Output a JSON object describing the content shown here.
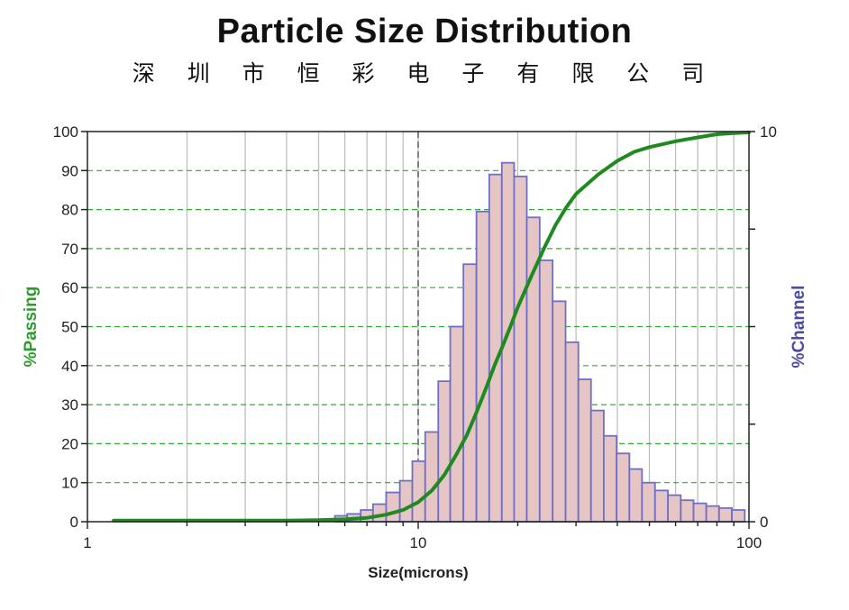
{
  "chart_data": {
    "type": "bar",
    "title": "Particle Size Distribution",
    "subtitle": "深 圳 市 恒 彩 电 子 有 限 公 司",
    "xlabel": "Size(microns)",
    "ylabel_left": "%Passing",
    "ylabel_right": "%Channel",
    "x_scale": "log",
    "xlim": [
      1,
      100
    ],
    "x_ticks": [
      1,
      10,
      100
    ],
    "ylim_left": [
      0,
      100
    ],
    "y_ticks_left": [
      0,
      10,
      20,
      30,
      40,
      50,
      60,
      70,
      80,
      90,
      100
    ],
    "ylim_right": [
      0,
      10
    ],
    "y_ticks_right_labeled": [
      0,
      10
    ],
    "reference_line_x": 10,
    "grid": true,
    "colors": {
      "passing": "#1f8a1f",
      "channel_axis": "#4b4ba0",
      "bar_fill": "#e6c5c5",
      "bar_edge": "#6f6fc8",
      "grid_h": "#33aa33",
      "grid_v": "#bfbfbf"
    },
    "histogram": {
      "name": "%Channel",
      "bins": [
        {
          "from": 5.6,
          "to": 6.1,
          "value": 0.15
        },
        {
          "from": 6.1,
          "to": 6.7,
          "value": 0.2
        },
        {
          "from": 6.7,
          "to": 7.3,
          "value": 0.3
        },
        {
          "from": 7.3,
          "to": 8.0,
          "value": 0.45
        },
        {
          "from": 8.0,
          "to": 8.8,
          "value": 0.75
        },
        {
          "from": 8.8,
          "to": 9.6,
          "value": 1.05
        },
        {
          "from": 9.6,
          "to": 10.5,
          "value": 1.55
        },
        {
          "from": 10.5,
          "to": 11.5,
          "value": 2.3
        },
        {
          "from": 11.5,
          "to": 12.5,
          "value": 3.6
        },
        {
          "from": 12.5,
          "to": 13.7,
          "value": 5.0
        },
        {
          "from": 13.7,
          "to": 15.0,
          "value": 6.6
        },
        {
          "from": 15.0,
          "to": 16.4,
          "value": 7.95
        },
        {
          "from": 16.4,
          "to": 17.9,
          "value": 8.9
        },
        {
          "from": 17.9,
          "to": 19.5,
          "value": 9.2
        },
        {
          "from": 19.5,
          "to": 21.3,
          "value": 8.85
        },
        {
          "from": 21.3,
          "to": 23.3,
          "value": 7.8
        },
        {
          "from": 23.3,
          "to": 25.5,
          "value": 6.7
        },
        {
          "from": 25.5,
          "to": 27.9,
          "value": 5.65
        },
        {
          "from": 27.9,
          "to": 30.5,
          "value": 4.6
        },
        {
          "from": 30.5,
          "to": 33.3,
          "value": 3.65
        },
        {
          "from": 33.3,
          "to": 36.4,
          "value": 2.85
        },
        {
          "from": 36.4,
          "to": 39.8,
          "value": 2.2
        },
        {
          "from": 39.8,
          "to": 43.5,
          "value": 1.75
        },
        {
          "from": 43.5,
          "to": 47.5,
          "value": 1.35
        },
        {
          "from": 47.5,
          "to": 52.0,
          "value": 1.0
        },
        {
          "from": 52.0,
          "to": 56.9,
          "value": 0.8
        },
        {
          "from": 56.9,
          "to": 62.2,
          "value": 0.68
        },
        {
          "from": 62.2,
          "to": 68.0,
          "value": 0.55
        },
        {
          "from": 68.0,
          "to": 74.3,
          "value": 0.47
        },
        {
          "from": 74.3,
          "to": 81.2,
          "value": 0.4
        },
        {
          "from": 81.2,
          "to": 88.8,
          "value": 0.35
        },
        {
          "from": 88.8,
          "to": 97.1,
          "value": 0.3
        }
      ]
    },
    "series": [
      {
        "name": "%Passing",
        "points": [
          [
            1.2,
            0.3
          ],
          [
            2,
            0.3
          ],
          [
            3,
            0.3
          ],
          [
            4,
            0.3
          ],
          [
            5,
            0.4
          ],
          [
            6,
            0.6
          ],
          [
            7,
            1.0
          ],
          [
            8,
            1.8
          ],
          [
            9,
            3.0
          ],
          [
            10,
            5.0
          ],
          [
            11,
            8.0
          ],
          [
            12,
            12.0
          ],
          [
            13,
            17.0
          ],
          [
            14,
            22.0
          ],
          [
            15,
            28.0
          ],
          [
            16,
            34.0
          ],
          [
            17,
            40.0
          ],
          [
            18,
            45.0
          ],
          [
            19,
            50.0
          ],
          [
            20,
            55.0
          ],
          [
            22,
            63.0
          ],
          [
            24,
            70.0
          ],
          [
            26,
            76.0
          ],
          [
            28,
            80.5
          ],
          [
            30,
            84.0
          ],
          [
            35,
            89.0
          ],
          [
            40,
            92.5
          ],
          [
            45,
            94.8
          ],
          [
            50,
            96.0
          ],
          [
            60,
            97.5
          ],
          [
            70,
            98.5
          ],
          [
            80,
            99.3
          ],
          [
            90,
            99.6
          ],
          [
            100,
            99.8
          ]
        ]
      }
    ]
  }
}
